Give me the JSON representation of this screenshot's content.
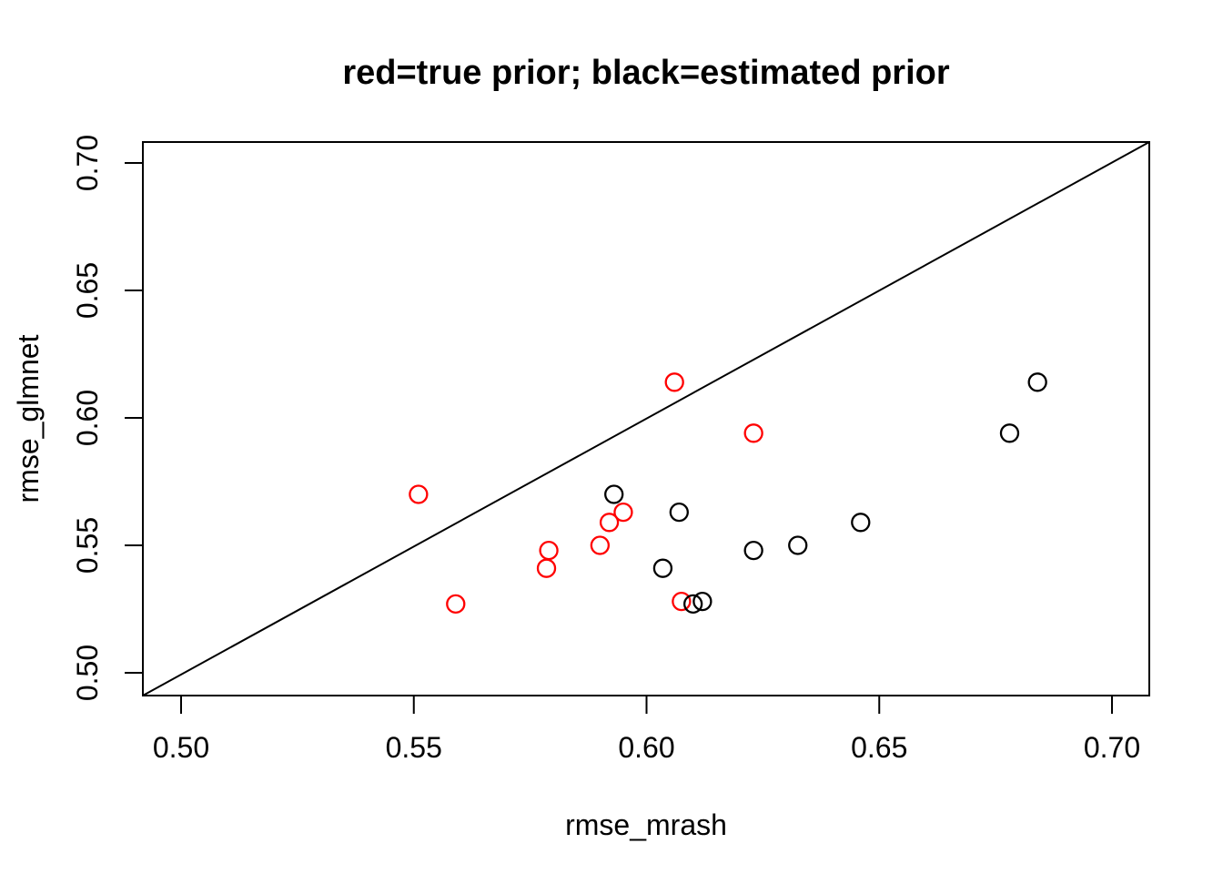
{
  "chart_data": {
    "type": "scatter",
    "title": "red=true prior; black=estimated prior",
    "xlabel": "rmse_mrash",
    "ylabel": "rmse_glmnet",
    "x_tick_labels": [
      "0.50",
      "0.55",
      "0.60",
      "0.65",
      "0.70"
    ],
    "y_tick_labels": [
      "0.50",
      "0.55",
      "0.60",
      "0.65",
      "0.70"
    ],
    "x_tick_values": [
      0.5,
      0.55,
      0.6,
      0.65,
      0.7
    ],
    "y_tick_values": [
      0.5,
      0.55,
      0.6,
      0.65,
      0.7
    ],
    "xlim": [
      0.4918,
      0.708
    ],
    "ylim": [
      0.4911,
      0.7082
    ],
    "grid": false,
    "legend_position": "none",
    "reference_line": {
      "type": "identity",
      "slope": 1,
      "intercept": 0,
      "color": "#000000"
    },
    "series": [
      {
        "name": "true prior",
        "color": "#ff0000",
        "marker": "open-circle",
        "points": [
          [
            0.606,
            0.614
          ],
          [
            0.623,
            0.594
          ],
          [
            0.551,
            0.57
          ],
          [
            0.595,
            0.563
          ],
          [
            0.592,
            0.559
          ],
          [
            0.59,
            0.55
          ],
          [
            0.579,
            0.548
          ],
          [
            0.5785,
            0.541
          ],
          [
            0.559,
            0.527
          ],
          [
            0.6075,
            0.528
          ]
        ]
      },
      {
        "name": "estimated prior",
        "color": "#000000",
        "marker": "open-circle",
        "points": [
          [
            0.684,
            0.614
          ],
          [
            0.678,
            0.594
          ],
          [
            0.593,
            0.57
          ],
          [
            0.607,
            0.563
          ],
          [
            0.646,
            0.559
          ],
          [
            0.6325,
            0.55
          ],
          [
            0.623,
            0.548
          ],
          [
            0.6035,
            0.541
          ],
          [
            0.61,
            0.527
          ],
          [
            0.612,
            0.528
          ]
        ]
      }
    ]
  },
  "colors": {
    "red": "#ff0000",
    "black": "#000000",
    "background": "#ffffff"
  }
}
